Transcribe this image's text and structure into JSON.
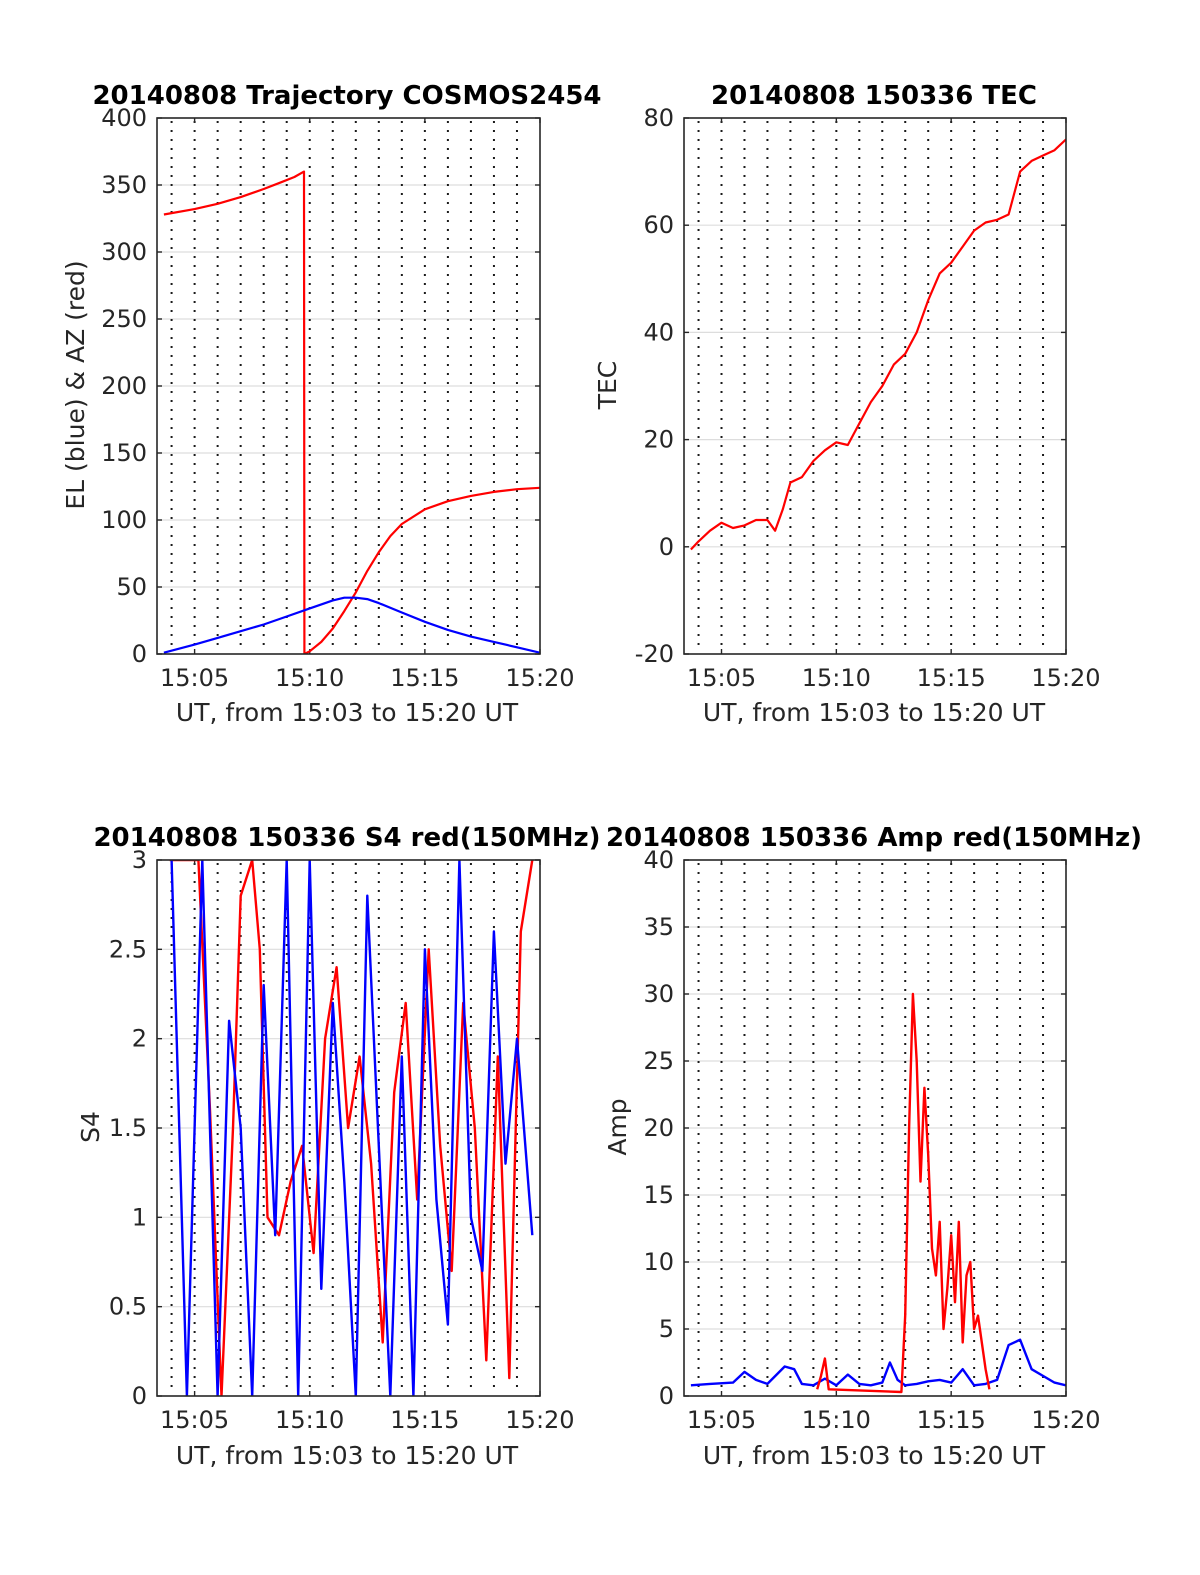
{
  "colors": {
    "red": "#ff0000",
    "blue": "#0000ff"
  },
  "chart_data": [
    {
      "id": "traj",
      "type": "line",
      "title": "20140808 Trajectory COSMOS2454",
      "xlabel": "UT, from 15:03 to 15:20 UT",
      "ylabel": "EL (blue) & AZ (red)",
      "xlim": [
        "15:03:22",
        "15:20:00"
      ],
      "ylim": [
        0,
        400
      ],
      "yticks": [
        0,
        50,
        100,
        150,
        200,
        250,
        300,
        350,
        400
      ],
      "xticks": [
        "15:05",
        "15:10",
        "15:15",
        "15:20"
      ],
      "grid": "on",
      "series": [
        {
          "color": "red",
          "x": [
            "15:03:40",
            "15:05:00",
            "15:06:00",
            "15:07:00",
            "15:08:00",
            "15:08:45",
            "15:09:20",
            "15:09:45",
            "15:09:46",
            "15:10:00",
            "15:10:30",
            "15:11:00",
            "15:11:30",
            "15:12:00",
            "15:12:30",
            "15:13:00",
            "15:13:30",
            "15:14:00",
            "15:15:00",
            "15:16:00",
            "15:17:00",
            "15:18:00",
            "15:19:00",
            "15:20:00"
          ],
          "y": [
            328,
            332,
            336,
            341,
            347,
            352,
            356,
            360,
            0,
            2,
            9,
            19,
            32,
            46,
            62,
            76,
            88,
            97,
            108,
            114,
            118,
            121,
            123,
            124
          ]
        },
        {
          "color": "blue",
          "x": [
            "15:03:40",
            "15:05:00",
            "15:06:00",
            "15:07:00",
            "15:08:00",
            "15:09:00",
            "15:10:00",
            "15:10:30",
            "15:11:00",
            "15:11:30",
            "15:12:00",
            "15:12:30",
            "15:13:00",
            "15:14:00",
            "15:15:00",
            "15:16:00",
            "15:17:00",
            "15:18:00",
            "15:19:00",
            "15:20:00"
          ],
          "y": [
            1,
            7,
            12,
            17,
            22,
            28,
            34,
            37,
            40,
            42,
            42,
            41,
            38,
            31,
            24,
            18,
            13,
            9,
            5,
            1
          ]
        }
      ]
    },
    {
      "id": "tec",
      "type": "line",
      "title": "20140808 150336 TEC",
      "xlabel": "UT, from 15:03 to 15:20 UT",
      "ylabel": "TEC",
      "xlim": [
        "15:03:22",
        "15:20:00"
      ],
      "ylim": [
        -20,
        80
      ],
      "yticks": [
        -20,
        0,
        20,
        40,
        60,
        80
      ],
      "xticks": [
        "15:05",
        "15:10",
        "15:15",
        "15:20"
      ],
      "grid": "on",
      "series": [
        {
          "color": "red",
          "x": [
            "15:03:40",
            "15:04:00",
            "15:04:30",
            "15:05:00",
            "15:05:30",
            "15:06:00",
            "15:06:30",
            "15:07:00",
            "15:07:20",
            "15:07:40",
            "15:08:00",
            "15:08:30",
            "15:09:00",
            "15:09:30",
            "15:10:00",
            "15:10:30",
            "15:11:00",
            "15:11:30",
            "15:12:00",
            "15:12:30",
            "15:13:00",
            "15:13:30",
            "15:14:00",
            "15:14:30",
            "15:15:00",
            "15:15:30",
            "15:16:00",
            "15:16:30",
            "15:17:00",
            "15:17:30",
            "15:18:00",
            "15:18:30",
            "15:19:00",
            "15:19:30",
            "15:20:00"
          ],
          "y": [
            -0.5,
            1,
            3,
            4.5,
            3.5,
            4,
            5,
            5,
            3,
            7,
            12,
            13,
            16,
            18,
            19.5,
            19,
            23,
            27,
            30,
            34,
            36,
            40,
            46,
            51,
            53,
            56,
            59,
            60.5,
            61,
            62,
            70,
            72,
            73,
            74,
            76
          ]
        }
      ]
    },
    {
      "id": "s4",
      "type": "line",
      "title": "20140808 150336 S4 red(150MHz)",
      "xlabel": "UT, from 15:03 to 15:20 UT",
      "ylabel": "S4",
      "xlim": [
        "15:03:22",
        "15:20:00"
      ],
      "ylim": [
        0,
        3
      ],
      "yticks": [
        0,
        0.5,
        1,
        1.5,
        2,
        2.5,
        3
      ],
      "xticks": [
        "15:05",
        "15:10",
        "15:15",
        "15:20"
      ],
      "grid": "on",
      "series": [
        {
          "color": "red",
          "x": [
            "15:03:55",
            "15:04:30",
            "15:05:10",
            "15:05:40",
            "15:06:10",
            "15:06:40",
            "15:07:00",
            "15:07:30",
            "15:07:50",
            "15:08:10",
            "15:08:40",
            "15:09:10",
            "15:09:40",
            "15:10:10",
            "15:10:40",
            "15:11:10",
            "15:11:40",
            "15:12:10",
            "15:12:40",
            "15:13:10",
            "15:13:40",
            "15:14:10",
            "15:14:40",
            "15:15:10",
            "15:15:40",
            "15:16:10",
            "15:16:40",
            "15:17:10",
            "15:17:40",
            "15:18:10",
            "15:18:40",
            "15:19:10",
            "15:19:40"
          ],
          "y": [
            3,
            3,
            3,
            1.6,
            0,
            1.5,
            2.8,
            3,
            2.5,
            1,
            0.9,
            1.2,
            1.4,
            0.8,
            2,
            2.4,
            1.5,
            1.9,
            1.3,
            0.3,
            1.7,
            2.2,
            1.1,
            2.5,
            1.4,
            0.7,
            2.2,
            1.5,
            0.2,
            1.9,
            0.1,
            2.6,
            3
          ]
        },
        {
          "color": "blue",
          "x": [
            "15:04:00",
            "15:04:40",
            "15:05:20",
            "15:06:00",
            "15:06:30",
            "15:07:00",
            "15:07:30",
            "15:08:00",
            "15:08:30",
            "15:09:00",
            "15:09:30",
            "15:10:00",
            "15:10:30",
            "15:11:00",
            "15:11:30",
            "15:12:00",
            "15:12:30",
            "15:13:00",
            "15:13:30",
            "15:14:00",
            "15:14:30",
            "15:15:00",
            "15:15:30",
            "15:16:00",
            "15:16:30",
            "15:17:00",
            "15:17:30",
            "15:18:00",
            "15:18:30",
            "15:19:00",
            "15:19:40"
          ],
          "y": [
            3,
            0,
            3,
            0,
            2.1,
            1.5,
            0,
            2.3,
            0.9,
            3,
            0,
            3,
            0.6,
            2.2,
            1.2,
            0,
            2.8,
            1.4,
            0,
            1.9,
            0,
            2.5,
            1.1,
            0.4,
            3,
            1,
            0.7,
            2.6,
            1.3,
            2,
            0.9
          ]
        }
      ]
    },
    {
      "id": "amp",
      "type": "line",
      "title": "20140808 150336 Amp red(150MHz)",
      "xlabel": "UT, from 15:03 to 15:20 UT",
      "ylabel": "Amp",
      "xlim": [
        "15:03:22",
        "15:20:00"
      ],
      "ylim": [
        0,
        40
      ],
      "yticks": [
        0,
        5,
        10,
        15,
        20,
        25,
        30,
        35,
        40
      ],
      "xticks": [
        "15:05",
        "15:10",
        "15:15",
        "15:20"
      ],
      "grid": "on",
      "series": [
        {
          "color": "blue",
          "x": [
            "15:03:40",
            "15:04:30",
            "15:05:30",
            "15:06:00",
            "15:06:30",
            "15:07:00",
            "15:07:45",
            "15:08:10",
            "15:08:30",
            "15:09:00",
            "15:09:30",
            "15:10:00",
            "15:10:30",
            "15:11:00",
            "15:11:30",
            "15:12:00",
            "15:12:20",
            "15:12:40",
            "15:13:00",
            "15:13:30",
            "15:14:00",
            "15:14:30",
            "15:15:00",
            "15:15:30",
            "15:16:00",
            "15:16:30",
            "15:17:00",
            "15:17:30",
            "15:18:00",
            "15:18:30",
            "15:19:00",
            "15:19:30",
            "15:20:00"
          ],
          "y": [
            0.8,
            0.9,
            1,
            1.8,
            1.2,
            0.9,
            2.2,
            2,
            0.9,
            0.8,
            1.3,
            0.8,
            1.6,
            0.9,
            0.8,
            1,
            2.5,
            1.2,
            0.8,
            0.9,
            1.1,
            1.2,
            1,
            2,
            0.8,
            0.9,
            1.2,
            3.8,
            4.2,
            2,
            1.5,
            1,
            0.8
          ]
        },
        {
          "color": "red",
          "x": [
            "15:09:10",
            "15:09:20",
            "15:09:30",
            "15:09:40",
            "15:12:50",
            "15:13:00",
            "15:13:10",
            "15:13:20",
            "15:13:30",
            "15:13:40",
            "15:13:50",
            "15:14:00",
            "15:14:10",
            "15:14:20",
            "15:14:30",
            "15:14:40",
            "15:14:50",
            "15:15:00",
            "15:15:10",
            "15:15:20",
            "15:15:30",
            "15:15:40",
            "15:15:50",
            "15:16:00",
            "15:16:10",
            "15:16:20",
            "15:16:30",
            "15:16:40"
          ],
          "y": [
            0.5,
            1.5,
            2.8,
            0.5,
            0.3,
            6,
            20,
            30,
            25,
            16,
            23,
            18,
            11,
            9,
            13,
            5,
            8,
            12,
            7,
            13,
            4,
            9,
            10,
            5,
            6,
            4,
            2,
            0.5
          ]
        }
      ]
    }
  ]
}
